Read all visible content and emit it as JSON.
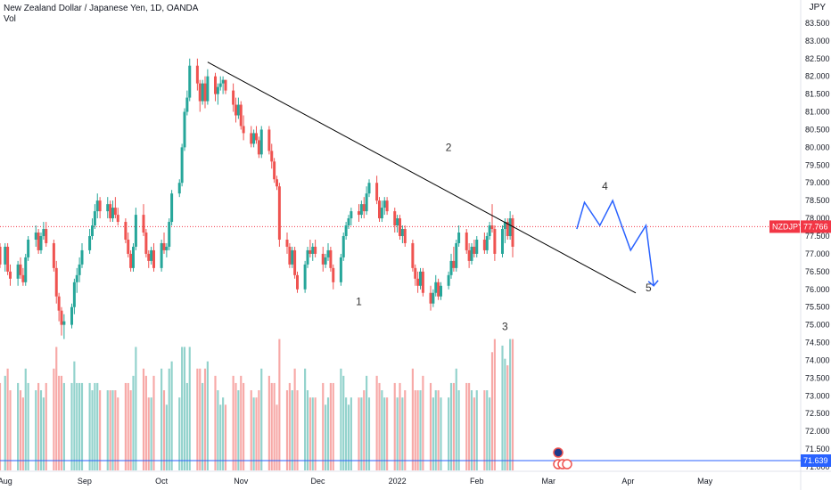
{
  "header": {
    "title": "New Zealand Dollar / Japanese Yen, 1D, OANDA",
    "vol_label": "Vol",
    "currency": "JPY"
  },
  "chart_data": {
    "type": "candlestick",
    "title": "New Zealand Dollar / Japanese Yen, 1D, OANDA",
    "symbol": "NZDJPY",
    "last_price": "77.766",
    "last_price_value": 77.766,
    "volume_marker_label": "71.639",
    "y_ticks": [
      "83.500",
      "83.000",
      "82.500",
      "82.000",
      "81.500",
      "81.000",
      "80.500",
      "80.000",
      "79.500",
      "79.000",
      "78.500",
      "78.000",
      "77.500",
      "77.000",
      "76.500",
      "76.000",
      "75.500",
      "75.000",
      "74.500",
      "74.000",
      "73.500",
      "73.000",
      "72.500",
      "72.000",
      "71.500",
      "71.000"
    ],
    "x_labels": [
      "Aug",
      "Sep",
      "Oct",
      "Nov",
      "Dec",
      "2022",
      "Feb",
      "Mar",
      "Apr",
      "May"
    ],
    "x_label_days": [
      0,
      31,
      61,
      92,
      122,
      153,
      184,
      212,
      243,
      273
    ],
    "price_range": [
      70.9,
      84.15
    ],
    "day_range": [
      -2,
      310
    ],
    "colors": {
      "up": "#26a69a",
      "down": "#ef5350",
      "up_volume": "#26a69a",
      "down_volume": "#ef5350",
      "trendline": "#000000",
      "projection": "#2962ff",
      "last_price": "#f23645",
      "volume_line": "#2962ff"
    },
    "trendline": [
      [
        79,
        82.4
      ],
      [
        246,
        75.9
      ]
    ],
    "projection_path": [
      [
        223,
        77.7
      ],
      [
        226,
        78.45
      ],
      [
        232,
        77.8
      ],
      [
        237,
        78.5
      ],
      [
        244,
        77.1
      ],
      [
        250,
        77.8
      ],
      [
        253,
        76.1
      ]
    ],
    "projection_arrow_tip": [
      253,
      76.1
    ],
    "wave_labels": [
      {
        "text": "1",
        "day": 138,
        "price": 75.55
      },
      {
        "text": "2",
        "day": 173,
        "price": 79.9
      },
      {
        "text": "3",
        "day": 195,
        "price": 74.85
      },
      {
        "text": "4",
        "day": 234,
        "price": 78.8
      },
      {
        "text": "5",
        "day": 251,
        "price": 75.95
      }
    ],
    "candles": [
      {
        "d": -2,
        "o": 77.2,
        "h": 77.3,
        "l": 76.6,
        "c": 76.7
      },
      {
        "d": 0,
        "o": 76.7,
        "h": 77.3,
        "l": 76.5,
        "c": 77.2
      },
      {
        "d": 1,
        "o": 77.2,
        "h": 77.3,
        "l": 76.4,
        "c": 76.5
      },
      {
        "d": 2,
        "o": 76.5,
        "h": 76.7,
        "l": 76.1,
        "c": 76.3
      },
      {
        "d": 5,
        "o": 76.3,
        "h": 76.8,
        "l": 76.1,
        "c": 76.7
      },
      {
        "d": 6,
        "o": 76.7,
        "h": 76.9,
        "l": 76.3,
        "c": 76.4
      },
      {
        "d": 7,
        "o": 76.4,
        "h": 76.6,
        "l": 76.1,
        "c": 76.2
      },
      {
        "d": 8,
        "o": 76.2,
        "h": 77.0,
        "l": 76.1,
        "c": 76.9
      },
      {
        "d": 9,
        "o": 76.9,
        "h": 77.5,
        "l": 76.8,
        "c": 77.4
      },
      {
        "d": 12,
        "o": 77.4,
        "h": 77.8,
        "l": 77.2,
        "c": 77.6
      },
      {
        "d": 13,
        "o": 77.6,
        "h": 77.7,
        "l": 77.0,
        "c": 77.1
      },
      {
        "d": 14,
        "o": 77.1,
        "h": 77.6,
        "l": 77.0,
        "c": 77.5
      },
      {
        "d": 15,
        "o": 77.5,
        "h": 77.9,
        "l": 77.4,
        "c": 77.7
      },
      {
        "d": 16,
        "o": 77.7,
        "h": 77.9,
        "l": 77.2,
        "c": 77.3
      },
      {
        "d": 19,
        "o": 77.3,
        "h": 77.4,
        "l": 76.5,
        "c": 76.6
      },
      {
        "d": 20,
        "o": 76.6,
        "h": 76.8,
        "l": 75.6,
        "c": 75.8
      },
      {
        "d": 21,
        "o": 75.8,
        "h": 75.9,
        "l": 75.1,
        "c": 75.4
      },
      {
        "d": 22,
        "o": 75.4,
        "h": 75.5,
        "l": 74.7,
        "c": 75.0
      },
      {
        "d": 23,
        "o": 75.0,
        "h": 75.3,
        "l": 74.6,
        "c": 75.1
      },
      {
        "d": 26,
        "o": 75.0,
        "h": 75.6,
        "l": 74.9,
        "c": 75.5
      },
      {
        "d": 27,
        "o": 75.5,
        "h": 76.3,
        "l": 75.3,
        "c": 76.2
      },
      {
        "d": 28,
        "o": 76.2,
        "h": 76.6,
        "l": 75.9,
        "c": 76.4
      },
      {
        "d": 29,
        "o": 76.4,
        "h": 76.9,
        "l": 76.2,
        "c": 76.7
      },
      {
        "d": 30,
        "o": 76.7,
        "h": 77.3,
        "l": 76.6,
        "c": 77.1
      },
      {
        "d": 33,
        "o": 77.1,
        "h": 77.7,
        "l": 77.0,
        "c": 77.5
      },
      {
        "d": 34,
        "o": 77.5,
        "h": 78.0,
        "l": 77.4,
        "c": 77.8
      },
      {
        "d": 35,
        "o": 77.8,
        "h": 78.4,
        "l": 77.7,
        "c": 78.2
      },
      {
        "d": 36,
        "o": 78.2,
        "h": 78.7,
        "l": 78.0,
        "c": 78.5
      },
      {
        "d": 37,
        "o": 78.5,
        "h": 78.6,
        "l": 78.0,
        "c": 78.2
      },
      {
        "d": 40,
        "o": 78.2,
        "h": 78.6,
        "l": 78.0,
        "c": 78.4
      },
      {
        "d": 41,
        "o": 78.4,
        "h": 78.5,
        "l": 77.9,
        "c": 78.0
      },
      {
        "d": 42,
        "o": 78.0,
        "h": 78.5,
        "l": 77.9,
        "c": 78.3
      },
      {
        "d": 43,
        "o": 78.3,
        "h": 78.6,
        "l": 78.0,
        "c": 78.1
      },
      {
        "d": 44,
        "o": 78.1,
        "h": 78.3,
        "l": 77.8,
        "c": 77.9
      },
      {
        "d": 47,
        "o": 77.9,
        "h": 78.0,
        "l": 77.3,
        "c": 77.4
      },
      {
        "d": 48,
        "o": 77.4,
        "h": 77.6,
        "l": 76.9,
        "c": 77.0
      },
      {
        "d": 49,
        "o": 77.0,
        "h": 77.1,
        "l": 76.5,
        "c": 76.6
      },
      {
        "d": 50,
        "o": 76.6,
        "h": 77.3,
        "l": 76.5,
        "c": 77.2
      },
      {
        "d": 51,
        "o": 77.2,
        "h": 78.3,
        "l": 77.1,
        "c": 78.1
      },
      {
        "d": 54,
        "o": 78.1,
        "h": 78.4,
        "l": 77.5,
        "c": 77.6
      },
      {
        "d": 55,
        "o": 77.6,
        "h": 77.7,
        "l": 76.9,
        "c": 77.0
      },
      {
        "d": 56,
        "o": 77.0,
        "h": 77.1,
        "l": 76.6,
        "c": 76.8
      },
      {
        "d": 57,
        "o": 76.8,
        "h": 77.2,
        "l": 76.7,
        "c": 77.1
      },
      {
        "d": 58,
        "o": 77.1,
        "h": 77.3,
        "l": 76.5,
        "c": 76.6
      },
      {
        "d": 61,
        "o": 76.6,
        "h": 77.4,
        "l": 76.5,
        "c": 77.3
      },
      {
        "d": 62,
        "o": 77.3,
        "h": 77.6,
        "l": 77.0,
        "c": 77.1
      },
      {
        "d": 63,
        "o": 77.1,
        "h": 77.3,
        "l": 76.9,
        "c": 77.2
      },
      {
        "d": 64,
        "o": 77.2,
        "h": 78.0,
        "l": 77.1,
        "c": 77.9
      },
      {
        "d": 65,
        "o": 77.9,
        "h": 78.8,
        "l": 77.8,
        "c": 78.7
      },
      {
        "d": 68,
        "o": 78.7,
        "h": 79.1,
        "l": 78.6,
        "c": 79.0
      },
      {
        "d": 69,
        "o": 79.0,
        "h": 80.1,
        "l": 78.9,
        "c": 80.0
      },
      {
        "d": 70,
        "o": 80.0,
        "h": 81.1,
        "l": 79.9,
        "c": 81.0
      },
      {
        "d": 71,
        "o": 81.0,
        "h": 81.6,
        "l": 80.9,
        "c": 81.4
      },
      {
        "d": 72,
        "o": 81.4,
        "h": 82.5,
        "l": 81.3,
        "c": 82.3
      },
      {
        "d": 75,
        "o": 82.3,
        "h": 82.5,
        "l": 81.6,
        "c": 81.8
      },
      {
        "d": 76,
        "o": 81.8,
        "h": 81.9,
        "l": 81.0,
        "c": 81.3
      },
      {
        "d": 77,
        "o": 81.3,
        "h": 81.9,
        "l": 81.2,
        "c": 81.8
      },
      {
        "d": 78,
        "o": 81.8,
        "h": 82.0,
        "l": 81.1,
        "c": 81.3
      },
      {
        "d": 79,
        "o": 81.3,
        "h": 82.2,
        "l": 81.2,
        "c": 82.0
      },
      {
        "d": 82,
        "o": 82.0,
        "h": 82.1,
        "l": 81.3,
        "c": 81.5
      },
      {
        "d": 83,
        "o": 81.5,
        "h": 81.8,
        "l": 81.2,
        "c": 81.7
      },
      {
        "d": 84,
        "o": 81.7,
        "h": 82.0,
        "l": 81.6,
        "c": 81.8
      },
      {
        "d": 85,
        "o": 81.8,
        "h": 82.0,
        "l": 81.5,
        "c": 81.9
      },
      {
        "d": 86,
        "o": 81.9,
        "h": 81.9,
        "l": 81.5,
        "c": 81.6
      },
      {
        "d": 89,
        "o": 81.6,
        "h": 81.8,
        "l": 81.0,
        "c": 81.2
      },
      {
        "d": 90,
        "o": 81.2,
        "h": 81.4,
        "l": 80.7,
        "c": 80.9
      },
      {
        "d": 91,
        "o": 80.9,
        "h": 81.4,
        "l": 80.8,
        "c": 81.2
      },
      {
        "d": 92,
        "o": 81.2,
        "h": 81.3,
        "l": 80.5,
        "c": 80.6
      },
      {
        "d": 93,
        "o": 80.6,
        "h": 80.9,
        "l": 80.2,
        "c": 80.4
      },
      {
        "d": 96,
        "o": 80.4,
        "h": 80.6,
        "l": 80.0,
        "c": 80.1
      },
      {
        "d": 97,
        "o": 80.1,
        "h": 80.5,
        "l": 80.0,
        "c": 80.4
      },
      {
        "d": 98,
        "o": 80.4,
        "h": 80.6,
        "l": 80.1,
        "c": 80.2
      },
      {
        "d": 99,
        "o": 80.2,
        "h": 80.3,
        "l": 79.7,
        "c": 79.8
      },
      {
        "d": 100,
        "o": 79.8,
        "h": 80.6,
        "l": 79.7,
        "c": 80.5
      },
      {
        "d": 103,
        "o": 80.5,
        "h": 80.6,
        "l": 79.8,
        "c": 79.9
      },
      {
        "d": 104,
        "o": 79.9,
        "h": 80.1,
        "l": 79.4,
        "c": 79.6
      },
      {
        "d": 105,
        "o": 79.6,
        "h": 79.7,
        "l": 79.0,
        "c": 79.1
      },
      {
        "d": 106,
        "o": 79.1,
        "h": 79.2,
        "l": 78.8,
        "c": 78.9
      },
      {
        "d": 107,
        "o": 78.9,
        "h": 79.0,
        "l": 77.2,
        "c": 77.4
      },
      {
        "d": 110,
        "o": 77.4,
        "h": 77.6,
        "l": 77.0,
        "c": 77.2
      },
      {
        "d": 111,
        "o": 77.2,
        "h": 77.3,
        "l": 76.6,
        "c": 76.7
      },
      {
        "d": 112,
        "o": 76.7,
        "h": 77.2,
        "l": 76.6,
        "c": 77.1
      },
      {
        "d": 113,
        "o": 77.1,
        "h": 77.2,
        "l": 76.3,
        "c": 76.4
      },
      {
        "d": 114,
        "o": 76.4,
        "h": 76.5,
        "l": 75.9,
        "c": 76.0
      },
      {
        "d": 117,
        "o": 76.0,
        "h": 76.8,
        "l": 75.9,
        "c": 76.7
      },
      {
        "d": 118,
        "o": 76.7,
        "h": 77.2,
        "l": 76.6,
        "c": 77.1
      },
      {
        "d": 119,
        "o": 77.1,
        "h": 77.4,
        "l": 76.9,
        "c": 77.0
      },
      {
        "d": 120,
        "o": 77.0,
        "h": 77.3,
        "l": 76.8,
        "c": 77.2
      },
      {
        "d": 121,
        "o": 77.2,
        "h": 77.4,
        "l": 76.9,
        "c": 77.0
      },
      {
        "d": 124,
        "o": 77.0,
        "h": 77.2,
        "l": 76.5,
        "c": 76.7
      },
      {
        "d": 125,
        "o": 76.7,
        "h": 77.0,
        "l": 76.6,
        "c": 76.9
      },
      {
        "d": 126,
        "o": 76.9,
        "h": 77.3,
        "l": 76.8,
        "c": 77.1
      },
      {
        "d": 127,
        "o": 77.1,
        "h": 77.2,
        "l": 76.5,
        "c": 76.6
      },
      {
        "d": 128,
        "o": 76.6,
        "h": 76.7,
        "l": 76.0,
        "c": 76.2
      },
      {
        "d": 131,
        "o": 76.2,
        "h": 77.0,
        "l": 76.1,
        "c": 76.9
      },
      {
        "d": 132,
        "o": 76.9,
        "h": 77.6,
        "l": 76.8,
        "c": 77.5
      },
      {
        "d": 133,
        "o": 77.5,
        "h": 77.9,
        "l": 77.4,
        "c": 77.8
      },
      {
        "d": 134,
        "o": 77.8,
        "h": 78.1,
        "l": 77.7,
        "c": 78.0
      },
      {
        "d": 135,
        "o": 78.0,
        "h": 78.3,
        "l": 77.8,
        "c": 78.2
      },
      {
        "d": 138,
        "o": 78.2,
        "h": 78.4,
        "l": 77.9,
        "c": 78.1
      },
      {
        "d": 139,
        "o": 78.1,
        "h": 78.5,
        "l": 78.0,
        "c": 78.4
      },
      {
        "d": 140,
        "o": 78.4,
        "h": 78.6,
        "l": 78.0,
        "c": 78.2
      },
      {
        "d": 141,
        "o": 78.2,
        "h": 78.9,
        "l": 78.1,
        "c": 78.7
      },
      {
        "d": 142,
        "o": 78.7,
        "h": 79.1,
        "l": 78.6,
        "c": 79.0
      },
      {
        "d": 145,
        "o": 79.0,
        "h": 79.2,
        "l": 78.4,
        "c": 78.5
      },
      {
        "d": 146,
        "o": 78.5,
        "h": 78.6,
        "l": 77.9,
        "c": 78.0
      },
      {
        "d": 147,
        "o": 78.0,
        "h": 78.5,
        "l": 77.9,
        "c": 78.3
      },
      {
        "d": 148,
        "o": 78.3,
        "h": 78.6,
        "l": 78.1,
        "c": 78.5
      },
      {
        "d": 149,
        "o": 78.5,
        "h": 78.6,
        "l": 78.1,
        "c": 78.2
      },
      {
        "d": 152,
        "o": 78.2,
        "h": 78.3,
        "l": 77.6,
        "c": 77.8
      },
      {
        "d": 153,
        "o": 77.8,
        "h": 78.1,
        "l": 77.6,
        "c": 78.0
      },
      {
        "d": 154,
        "o": 78.0,
        "h": 78.1,
        "l": 77.4,
        "c": 77.5
      },
      {
        "d": 155,
        "o": 77.5,
        "h": 77.8,
        "l": 77.3,
        "c": 77.7
      },
      {
        "d": 156,
        "o": 77.7,
        "h": 77.8,
        "l": 77.2,
        "c": 77.3
      },
      {
        "d": 159,
        "o": 77.3,
        "h": 77.4,
        "l": 76.5,
        "c": 76.6
      },
      {
        "d": 160,
        "o": 76.6,
        "h": 76.7,
        "l": 76.1,
        "c": 76.3
      },
      {
        "d": 161,
        "o": 76.3,
        "h": 76.5,
        "l": 75.9,
        "c": 76.1
      },
      {
        "d": 162,
        "o": 76.1,
        "h": 76.6,
        "l": 76.0,
        "c": 76.5
      },
      {
        "d": 163,
        "o": 76.5,
        "h": 76.6,
        "l": 75.8,
        "c": 75.9
      },
      {
        "d": 166,
        "o": 75.9,
        "h": 76.1,
        "l": 75.4,
        "c": 75.6
      },
      {
        "d": 167,
        "o": 75.6,
        "h": 76.0,
        "l": 75.5,
        "c": 75.9
      },
      {
        "d": 168,
        "o": 75.9,
        "h": 76.4,
        "l": 75.8,
        "c": 76.2
      },
      {
        "d": 169,
        "o": 76.2,
        "h": 76.3,
        "l": 75.7,
        "c": 75.8
      },
      {
        "d": 170,
        "o": 75.8,
        "h": 76.2,
        "l": 75.7,
        "c": 76.1
      },
      {
        "d": 173,
        "o": 76.1,
        "h": 76.5,
        "l": 76.0,
        "c": 76.4
      },
      {
        "d": 174,
        "o": 76.4,
        "h": 77.0,
        "l": 76.3,
        "c": 76.8
      },
      {
        "d": 175,
        "o": 76.8,
        "h": 77.2,
        "l": 76.5,
        "c": 76.6
      },
      {
        "d": 176,
        "o": 76.6,
        "h": 77.4,
        "l": 76.5,
        "c": 77.3
      },
      {
        "d": 177,
        "o": 77.3,
        "h": 77.8,
        "l": 77.2,
        "c": 77.6
      },
      {
        "d": 180,
        "o": 77.6,
        "h": 77.7,
        "l": 77.0,
        "c": 77.1
      },
      {
        "d": 181,
        "o": 77.1,
        "h": 77.3,
        "l": 76.6,
        "c": 76.8
      },
      {
        "d": 182,
        "o": 76.8,
        "h": 77.3,
        "l": 76.7,
        "c": 77.2
      },
      {
        "d": 183,
        "o": 77.2,
        "h": 77.4,
        "l": 76.9,
        "c": 77.0
      },
      {
        "d": 184,
        "o": 77.0,
        "h": 77.5,
        "l": 76.9,
        "c": 77.4
      },
      {
        "d": 187,
        "o": 77.4,
        "h": 77.6,
        "l": 77.0,
        "c": 77.1
      },
      {
        "d": 188,
        "o": 77.1,
        "h": 77.6,
        "l": 77.0,
        "c": 77.5
      },
      {
        "d": 189,
        "o": 77.5,
        "h": 77.9,
        "l": 77.4,
        "c": 77.8
      },
      {
        "d": 190,
        "o": 77.8,
        "h": 78.4,
        "l": 77.6,
        "c": 77.7
      },
      {
        "d": 191,
        "o": 77.7,
        "h": 77.8,
        "l": 76.8,
        "c": 77.0
      },
      {
        "d": 194,
        "o": 77.0,
        "h": 77.8,
        "l": 76.9,
        "c": 77.7
      },
      {
        "d": 195,
        "o": 77.7,
        "h": 78.0,
        "l": 77.3,
        "c": 77.9
      },
      {
        "d": 196,
        "o": 77.9,
        "h": 78.0,
        "l": 77.4,
        "c": 77.5
      },
      {
        "d": 197,
        "o": 77.5,
        "h": 78.2,
        "l": 77.4,
        "c": 78.0
      },
      {
        "d": 198,
        "o": 78.0,
        "h": 78.1,
        "l": 76.9,
        "c": 77.2
      }
    ],
    "volume_label": "Vol",
    "volume_range": [
      0,
      1.05
    ],
    "volumes": []
  }
}
